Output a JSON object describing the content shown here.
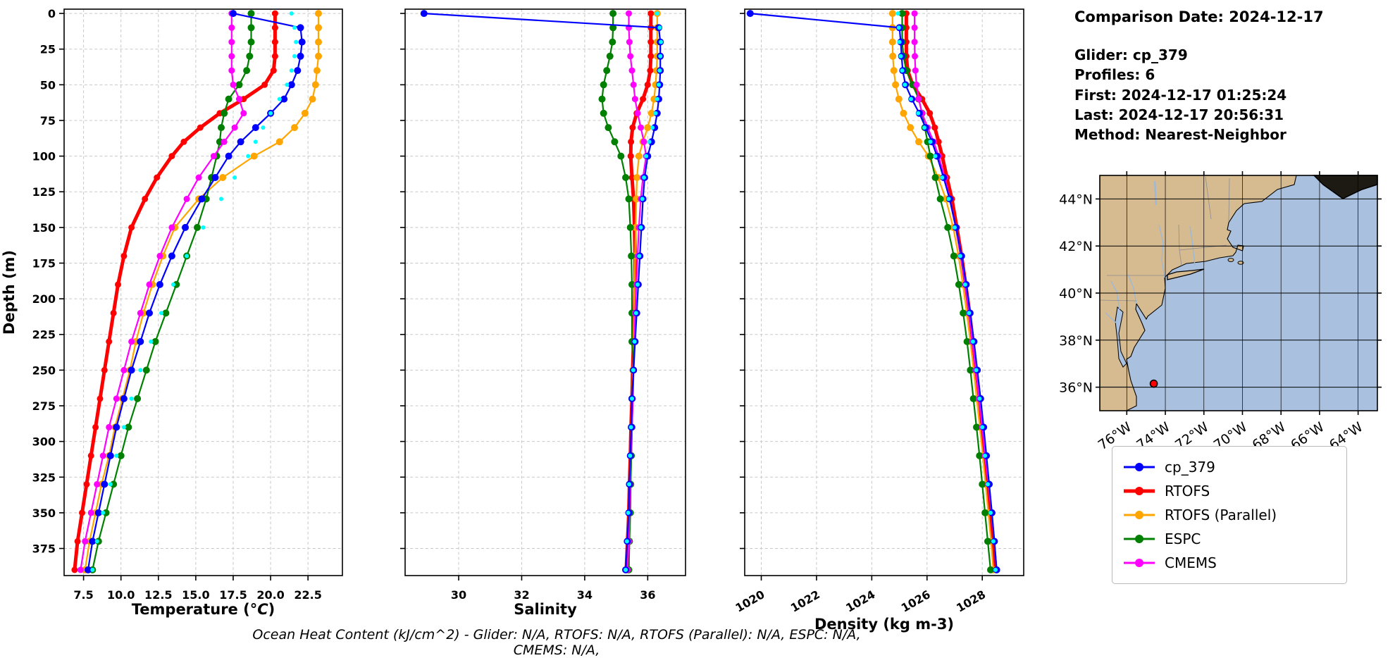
{
  "info": {
    "comparison_date": "Comparison Date: 2024-12-17",
    "glider": "Glider: cp_379",
    "profiles": "Profiles: 6",
    "first": "First: 2024-12-17 01:25:24",
    "last": "Last: 2024-12-17 20:56:31",
    "method": "Method: Nearest-Neighbor"
  },
  "footer": {
    "ohc_text": "Ocean Heat Content (kJ/cm^2) - Glider: N/A,  RTOFS: N/A,  RTOFS (Parallel): N/A,  ESPC: N/A,  CMEMS: N/A,"
  },
  "legend": {
    "items": [
      {
        "label": "cp_379",
        "color": "#0000ff",
        "lw": 3
      },
      {
        "label": "RTOFS",
        "color": "#ff0000",
        "lw": 5
      },
      {
        "label": "RTOFS (Parallel)",
        "color": "#ffa500",
        "lw": 3
      },
      {
        "label": "ESPC",
        "color": "#008000",
        "lw": 3
      },
      {
        "label": "CMEMS",
        "color": "#ff00ff",
        "lw": 3
      }
    ]
  },
  "map": {
    "land_color": "#d6ba90",
    "ocean_color": "#a9c0de",
    "river_color": "#9db8d9",
    "marker_color": "#ff0000",
    "lat_labels": [
      "44°N",
      "42°N",
      "40°N",
      "38°N",
      "36°N"
    ],
    "lat_values": [
      44,
      42,
      40,
      38,
      36
    ],
    "lon_labels": [
      "76°W",
      "74°W",
      "72°W",
      "70°W",
      "68°W",
      "66°W",
      "64°W"
    ],
    "lon_values": [
      -76,
      -74,
      -72,
      -70,
      -68,
      -66,
      -64
    ],
    "extent": {
      "lon_min": -77.4,
      "lon_max": -63.0,
      "lat_min": 35.0,
      "lat_max": 45.0
    },
    "glider_marker": {
      "lon": -74.6,
      "lat": 36.15
    }
  },
  "chart_data": {
    "type": "line",
    "ylabel": "Depth (m)",
    "ylim": [
      -3,
      394
    ],
    "yticks": [
      0,
      25,
      50,
      75,
      100,
      125,
      150,
      175,
      200,
      225,
      250,
      275,
      300,
      325,
      350,
      375
    ],
    "ytick_labels": [
      "0",
      "25",
      "50",
      "75",
      "100",
      "125",
      "150",
      "175",
      "200",
      "225",
      "250",
      "275",
      "300",
      "325",
      "350",
      "375"
    ],
    "grid": true,
    "legend_position": "below-map",
    "depths": [
      0,
      10,
      20,
      30,
      40,
      50,
      60,
      70,
      80,
      90,
      100,
      115,
      130,
      150,
      170,
      190,
      210,
      230,
      250,
      270,
      290,
      310,
      330,
      350,
      370,
      390
    ],
    "series_defs": {
      "cp_379": {
        "color": "#0000ff",
        "lw": 2.2,
        "r": 5,
        "z": 5,
        "line": true
      },
      "RTOFS": {
        "color": "#ff0000",
        "lw": 5,
        "r": 4.5,
        "z": 1,
        "line": true
      },
      "RTOFS (Parallel)": {
        "color": "#ffa500",
        "lw": 2.2,
        "r": 5,
        "z": 2,
        "line": true
      },
      "ESPC": {
        "color": "#008000",
        "lw": 2.2,
        "r": 5,
        "z": 3,
        "line": true
      },
      "CMEMS": {
        "color": "#ff00ff",
        "lw": 2.2,
        "r": 4.5,
        "z": 4,
        "line": true
      },
      "glider_obs_cyan": {
        "color": "#00ffff",
        "lw": 0,
        "r": 3,
        "z": 6,
        "line": false
      }
    },
    "plots": [
      {
        "xlabel_parts": [
          {
            "t": "Temperature (",
            "i": false
          },
          {
            "t": "°C",
            "i": true
          },
          {
            "t": ")",
            "i": false
          }
        ],
        "xlabel": "Temperature (°C)",
        "xlim": [
          6.2,
          24.8
        ],
        "xtick_values": [
          7.5,
          10.0,
          12.5,
          15.0,
          17.5,
          20.0,
          22.5
        ],
        "xticks": [
          "7.5",
          "10.0",
          "12.5",
          "15.0",
          "17.5",
          "20.0",
          "22.5"
        ],
        "rotate_ticks": false,
        "series": [
          {
            "ref": "cp_379",
            "values": [
              17.5,
              22.0,
              22.1,
              22.0,
              21.8,
              21.4,
              20.9,
              20.0,
              19.0,
              18.0,
              17.2,
              16.3,
              15.4,
              14.3,
              13.4,
              12.6,
              11.9,
              11.3,
              10.7,
              10.2,
              9.7,
              9.3,
              8.9,
              8.5,
              8.1,
              7.8
            ]
          },
          {
            "ref": "RTOFS",
            "values": [
              20.3,
              20.3,
              20.3,
              20.3,
              20.2,
              19.6,
              18.2,
              16.6,
              15.3,
              14.2,
              13.4,
              12.4,
              11.6,
              10.7,
              10.2,
              9.8,
              9.5,
              9.2,
              8.9,
              8.6,
              8.3,
              8.0,
              7.7,
              7.4,
              7.1,
              6.9
            ]
          },
          {
            "ref": "RTOFS (Parallel)",
            "values": [
              23.2,
              23.2,
              23.2,
              23.2,
              23.1,
              23.0,
              22.8,
              22.3,
              21.6,
              20.6,
              18.9,
              16.8,
              15.2,
              13.6,
              12.8,
              12.1,
              11.5,
              11.0,
              10.6,
              10.1,
              9.6,
              9.2,
              8.7,
              8.3,
              7.9,
              7.6
            ]
          },
          {
            "ref": "ESPC",
            "values": [
              18.7,
              18.7,
              18.7,
              18.6,
              18.4,
              17.9,
              17.2,
              16.9,
              16.7,
              16.6,
              16.4,
              16.05,
              15.7,
              15.1,
              14.4,
              13.7,
              13.0,
              12.3,
              11.7,
              11.1,
              10.5,
              10.0,
              9.5,
              9.0,
              8.5,
              8.1
            ]
          },
          {
            "ref": "CMEMS",
            "values": [
              17.4,
              17.4,
              17.4,
              17.4,
              17.4,
              17.5,
              17.9,
              18.2,
              17.6,
              16.9,
              16.2,
              15.2,
              14.4,
              13.4,
              12.6,
              11.9,
              11.3,
              10.7,
              10.2,
              9.7,
              9.2,
              8.8,
              8.4,
              8.0,
              7.6,
              7.3
            ]
          },
          {
            "ref": "glider_obs_cyan",
            "values": [
              21.4,
              21.6,
              21.7,
              21.6,
              21.4,
              21.1,
              20.6,
              20.0,
              19.5,
              19.0,
              18.5,
              17.6,
              16.7,
              15.5,
              14.4,
              13.5,
              12.7,
              12.0,
              11.3,
              10.7,
              10.2,
              9.7,
              9.3,
              8.8,
              8.4,
              8.1
            ]
          }
        ]
      },
      {
        "xlabel": "Salinity",
        "xlim": [
          28.3,
          37.2
        ],
        "xtick_values": [
          30,
          32,
          34,
          36
        ],
        "xticks": [
          "30",
          "32",
          "34",
          "36"
        ],
        "rotate_ticks": false,
        "series": [
          {
            "ref": "cp_379",
            "values": [
              28.9,
              36.35,
              36.4,
              36.4,
              36.4,
              36.38,
              36.35,
              36.3,
              36.22,
              36.12,
              36.0,
              35.9,
              35.85,
              35.8,
              35.75,
              35.7,
              35.65,
              35.6,
              35.55,
              35.5,
              35.48,
              35.45,
              35.42,
              35.4,
              35.35,
              35.3
            ]
          },
          {
            "ref": "RTOFS",
            "values": [
              36.1,
              36.1,
              36.1,
              36.1,
              36.08,
              36.0,
              35.85,
              35.65,
              35.52,
              35.47,
              35.46,
              35.5,
              35.55,
              35.58,
              35.6,
              35.6,
              35.58,
              35.55,
              35.52,
              35.5,
              35.47,
              35.45,
              35.42,
              35.4,
              35.36,
              35.32
            ]
          },
          {
            "ref": "RTOFS (Parallel)",
            "values": [
              36.3,
              36.3,
              36.3,
              36.3,
              36.28,
              36.25,
              36.2,
              36.12,
              36.0,
              35.85,
              35.72,
              35.66,
              35.64,
              35.62,
              35.6,
              35.58,
              35.57,
              35.55,
              35.53,
              35.5,
              35.48,
              35.46,
              35.44,
              35.42,
              35.4,
              35.36
            ]
          },
          {
            "ref": "ESPC",
            "values": [
              34.9,
              34.9,
              34.88,
              34.8,
              34.7,
              34.6,
              34.55,
              34.6,
              34.75,
              34.95,
              35.15,
              35.3,
              35.4,
              35.45,
              35.48,
              35.5,
              35.5,
              35.5,
              35.55,
              35.5,
              35.5,
              35.48,
              35.46,
              35.45,
              35.42,
              35.4
            ]
          },
          {
            "ref": "CMEMS",
            "values": [
              35.4,
              35.4,
              35.42,
              35.45,
              35.5,
              35.55,
              35.6,
              35.68,
              35.78,
              35.88,
              35.95,
              35.85,
              35.78,
              35.72,
              35.68,
              35.64,
              35.6,
              35.58,
              35.55,
              35.52,
              35.5,
              35.46,
              35.44,
              35.42,
              35.4,
              35.36
            ]
          },
          {
            "ref": "glider_obs_cyan",
            "values": [
              36.3,
              36.38,
              36.42,
              36.4,
              36.38,
              36.35,
              36.3,
              36.25,
              36.15,
              36.05,
              35.95,
              35.88,
              35.83,
              35.78,
              35.73,
              35.68,
              35.63,
              35.58,
              35.54,
              35.5,
              35.47,
              35.44,
              35.41,
              35.38,
              35.34,
              35.3
            ]
          }
        ]
      },
      {
        "xlabel": "Density (kg m-3)",
        "xlim": [
          1019.4,
          1029.5
        ],
        "xtick_values": [
          1020,
          1022,
          1024,
          1026,
          1028
        ],
        "xticks": [
          "1020",
          "1022",
          "1024",
          "1026",
          "1028"
        ],
        "rotate_ticks": true,
        "series": [
          {
            "ref": "cp_379",
            "values": [
              1019.6,
              1025.0,
              1025.05,
              1025.08,
              1025.12,
              1025.22,
              1025.45,
              1025.72,
              1025.95,
              1026.18,
              1026.36,
              1026.6,
              1026.82,
              1027.05,
              1027.25,
              1027.42,
              1027.56,
              1027.7,
              1027.82,
              1027.94,
              1028.05,
              1028.15,
              1028.25,
              1028.35,
              1028.44,
              1028.52
            ]
          },
          {
            "ref": "RTOFS",
            "values": [
              1025.25,
              1025.25,
              1025.25,
              1025.25,
              1025.3,
              1025.48,
              1025.82,
              1026.1,
              1026.28,
              1026.42,
              1026.55,
              1026.72,
              1026.9,
              1027.08,
              1027.25,
              1027.4,
              1027.54,
              1027.66,
              1027.78,
              1027.9,
              1028.0,
              1028.1,
              1028.2,
              1028.3,
              1028.39,
              1028.46
            ]
          },
          {
            "ref": "RTOFS (Parallel)",
            "values": [
              1024.75,
              1024.75,
              1024.75,
              1024.76,
              1024.8,
              1024.86,
              1024.98,
              1025.15,
              1025.4,
              1025.7,
              1026.05,
              1026.4,
              1026.68,
              1026.95,
              1027.14,
              1027.3,
              1027.44,
              1027.57,
              1027.69,
              1027.8,
              1027.91,
              1028.02,
              1028.12,
              1028.22,
              1028.32,
              1028.4
            ]
          },
          {
            "ref": "ESPC",
            "values": [
              1025.1,
              1025.1,
              1025.1,
              1025.15,
              1025.25,
              1025.48,
              1025.7,
              1025.82,
              1025.92,
              1026.02,
              1026.12,
              1026.3,
              1026.48,
              1026.75,
              1026.97,
              1027.15,
              1027.31,
              1027.45,
              1027.57,
              1027.68,
              1027.79,
              1027.9,
              1028.0,
              1028.1,
              1028.2,
              1028.3
            ]
          },
          {
            "ref": "CMEMS",
            "values": [
              1025.55,
              1025.55,
              1025.55,
              1025.56,
              1025.58,
              1025.62,
              1025.7,
              1025.82,
              1026.02,
              1026.24,
              1026.42,
              1026.64,
              1026.82,
              1027.04,
              1027.22,
              1027.38,
              1027.52,
              1027.64,
              1027.76,
              1027.88,
              1028.0,
              1028.1,
              1028.22,
              1028.34,
              1028.44,
              1028.52
            ]
          },
          {
            "ref": "glider_obs_cyan",
            "values": [
              1024.95,
              1024.98,
              1025.0,
              1025.05,
              1025.1,
              1025.2,
              1025.42,
              1025.68,
              1025.9,
              1026.12,
              1026.3,
              1026.55,
              1026.78,
              1027.0,
              1027.2,
              1027.38,
              1027.52,
              1027.66,
              1027.78,
              1027.9,
              1028.0,
              1028.1,
              1028.2,
              1028.3,
              1028.4,
              1028.48
            ]
          }
        ]
      }
    ]
  }
}
